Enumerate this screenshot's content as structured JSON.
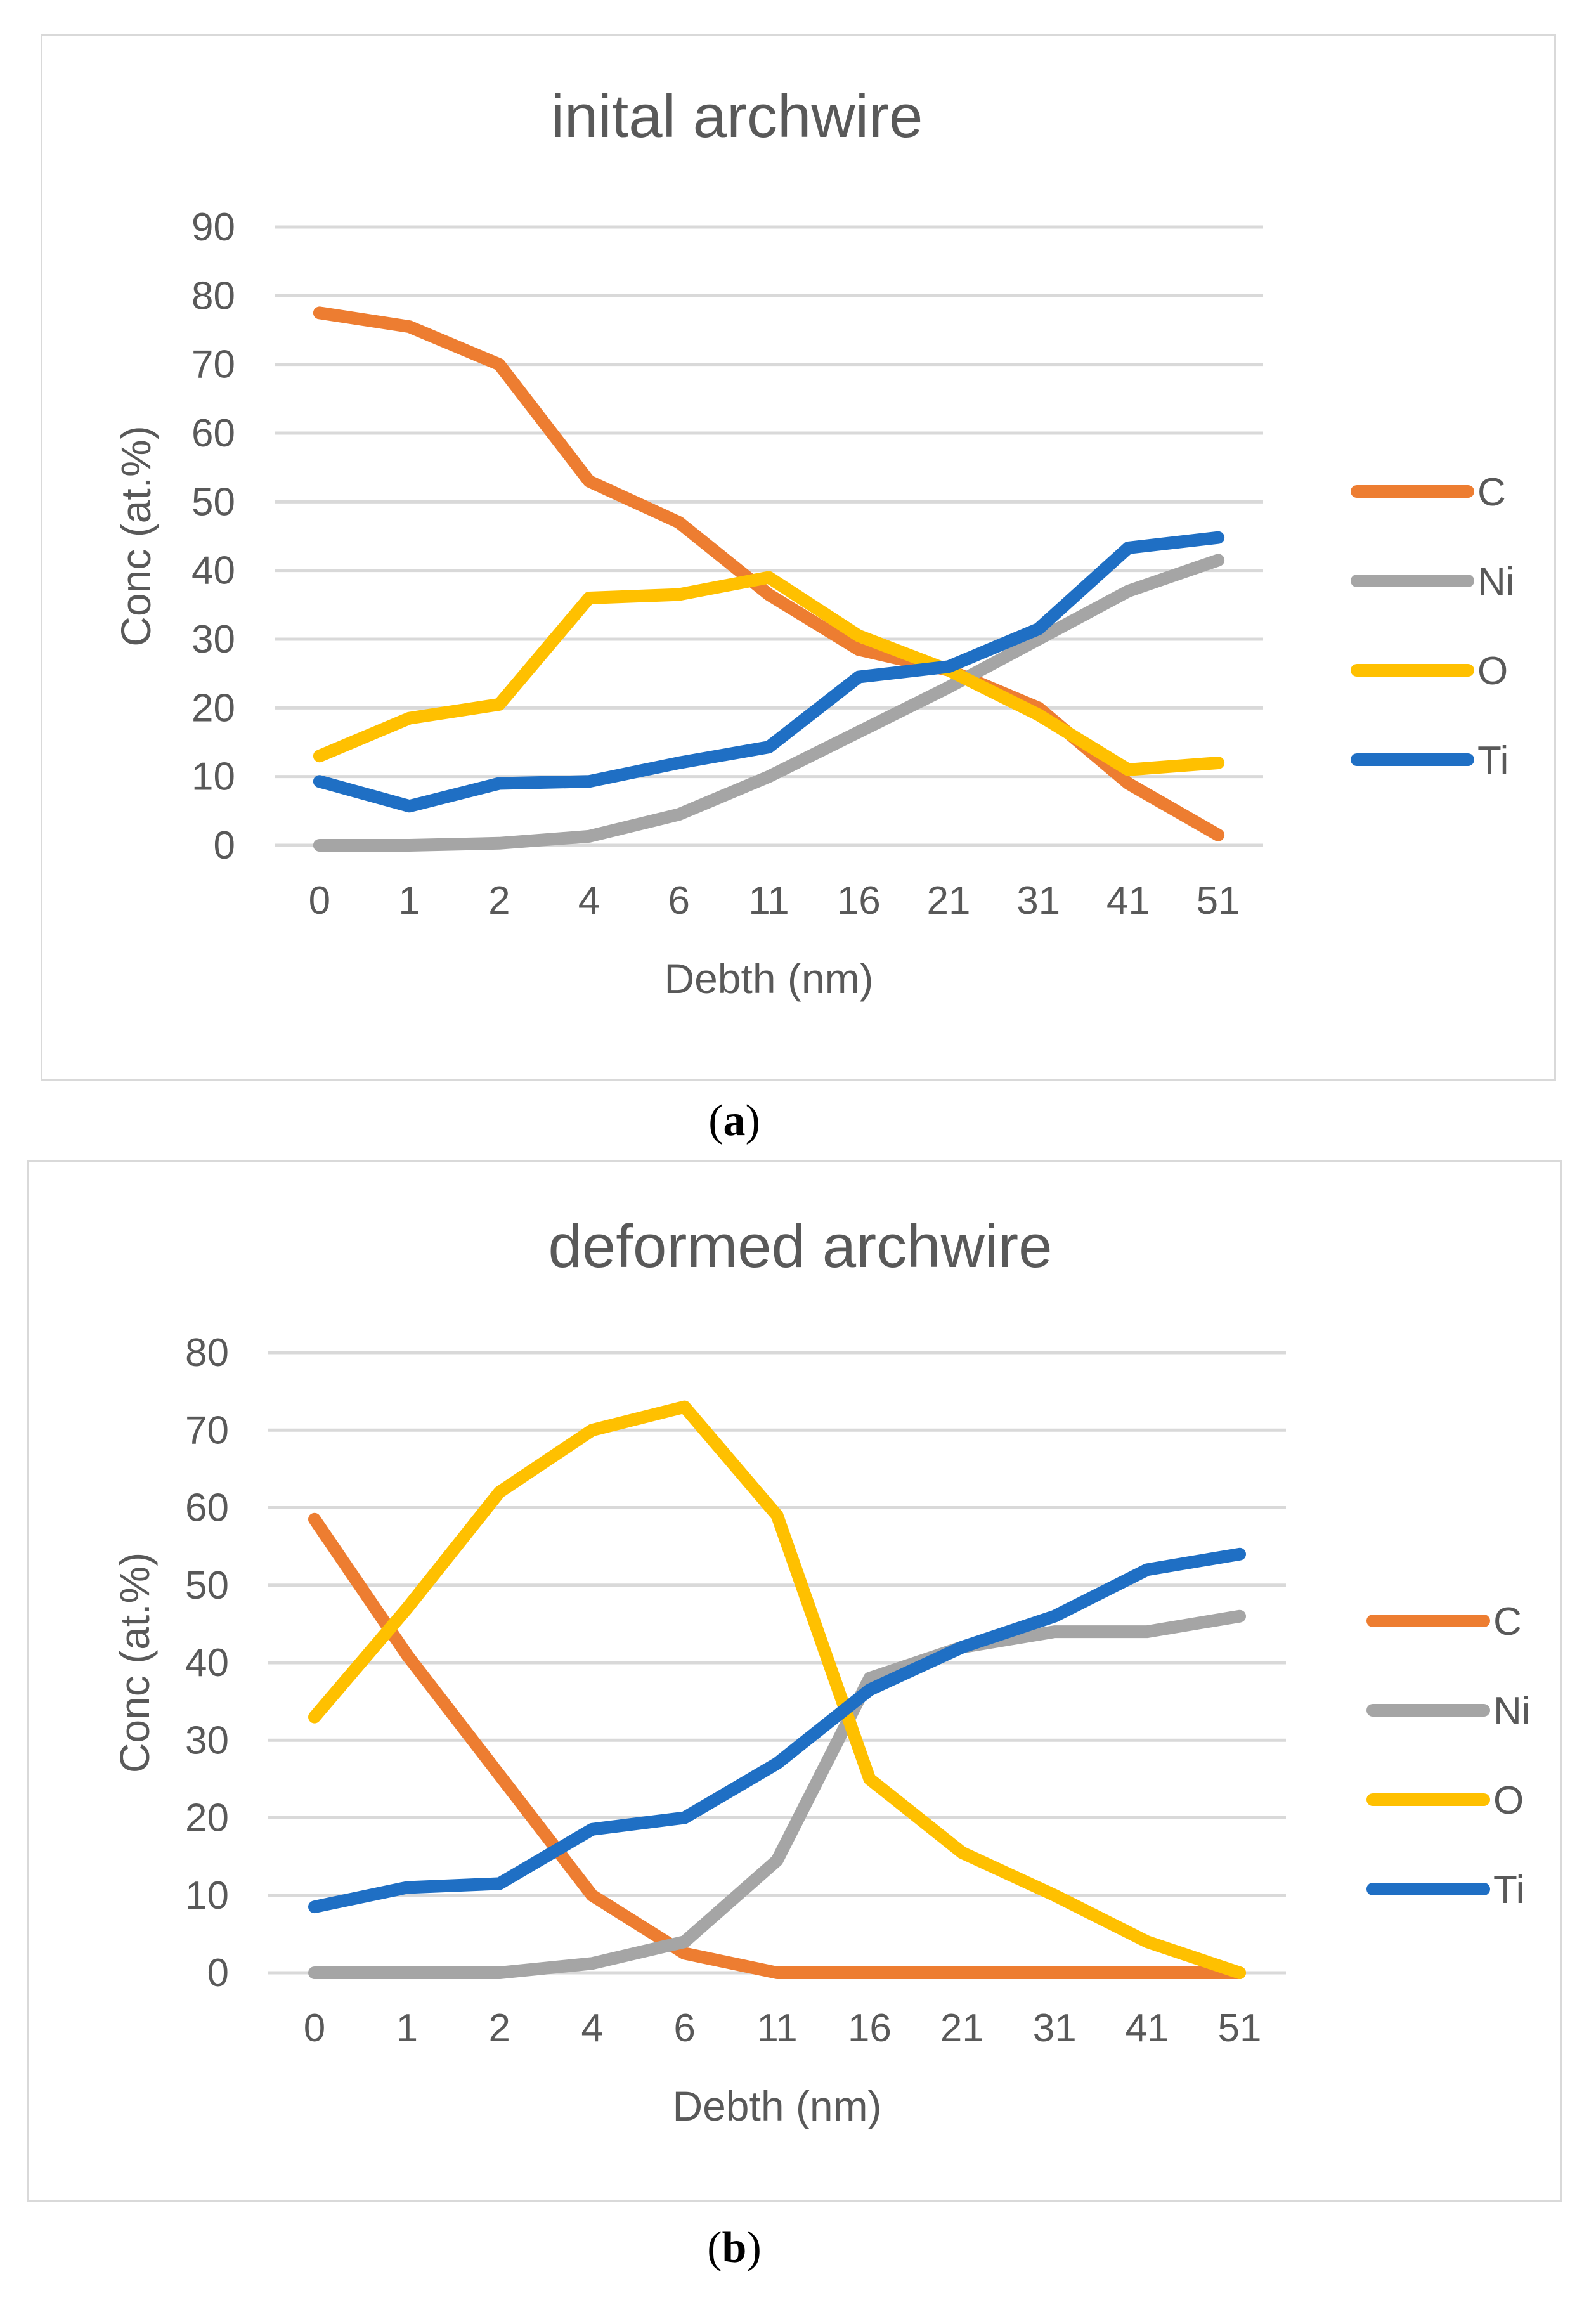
{
  "chart_data": [
    {
      "type": "line",
      "caption": "a",
      "title": "inital archwire",
      "xlabel": "Debth (nm)",
      "ylabel": "Conc  (at.%)",
      "categories": [
        "0",
        "1",
        "2",
        "4",
        "6",
        "11",
        "16",
        "21",
        "31",
        "41",
        "51"
      ],
      "ylim": [
        0,
        90
      ],
      "yticks": [
        0,
        10,
        20,
        30,
        40,
        50,
        60,
        70,
        80,
        90
      ],
      "grid": true,
      "legend_position": "right",
      "series": [
        {
          "name": "C",
          "color": "#ed7d31",
          "values": [
            77.5,
            75.5,
            70,
            53,
            47,
            36.5,
            28.5,
            25.5,
            20,
            9,
            1.5
          ]
        },
        {
          "name": "Ni",
          "color": "#a5a5a5",
          "values": [
            0,
            0,
            0.3,
            1.3,
            4.5,
            10,
            16.5,
            23,
            30,
            37,
            41.5
          ]
        },
        {
          "name": "O",
          "color": "#ffc000",
          "values": [
            13,
            18.5,
            20.5,
            36,
            36.5,
            39,
            30.5,
            25.5,
            19,
            11,
            12
          ]
        },
        {
          "name": "Ti",
          "color": "#1f6fc4",
          "values": [
            9.3,
            5.7,
            9,
            9.3,
            12,
            14.3,
            24.5,
            26,
            31.5,
            43.3,
            44.8
          ]
        }
      ]
    },
    {
      "type": "line",
      "caption": "b",
      "title": "deformed archwire",
      "xlabel": "Debth (nm)",
      "ylabel": "Conc  (at.%)",
      "categories": [
        "0",
        "1",
        "2",
        "4",
        "6",
        "11",
        "16",
        "21",
        "31",
        "41",
        "51"
      ],
      "ylim": [
        0,
        80
      ],
      "yticks": [
        0,
        10,
        20,
        30,
        40,
        50,
        60,
        70,
        80
      ],
      "grid": true,
      "legend_position": "right",
      "series": [
        {
          "name": "C",
          "color": "#ed7d31",
          "values": [
            58.5,
            41,
            25.5,
            10,
            2.5,
            0,
            0,
            0,
            0,
            0,
            0
          ]
        },
        {
          "name": "Ni",
          "color": "#a5a5a5",
          "values": [
            0,
            0,
            0,
            1.2,
            4,
            14.5,
            38,
            42,
            44,
            44,
            46
          ]
        },
        {
          "name": "O",
          "color": "#ffc000",
          "values": [
            33,
            47,
            62,
            70,
            73,
            59,
            25,
            15.5,
            10,
            4,
            0
          ]
        },
        {
          "name": "Ti",
          "color": "#1f6fc4",
          "values": [
            8.5,
            11,
            11.5,
            18.5,
            20,
            27,
            36.5,
            42,
            46,
            52,
            54
          ]
        }
      ]
    }
  ]
}
